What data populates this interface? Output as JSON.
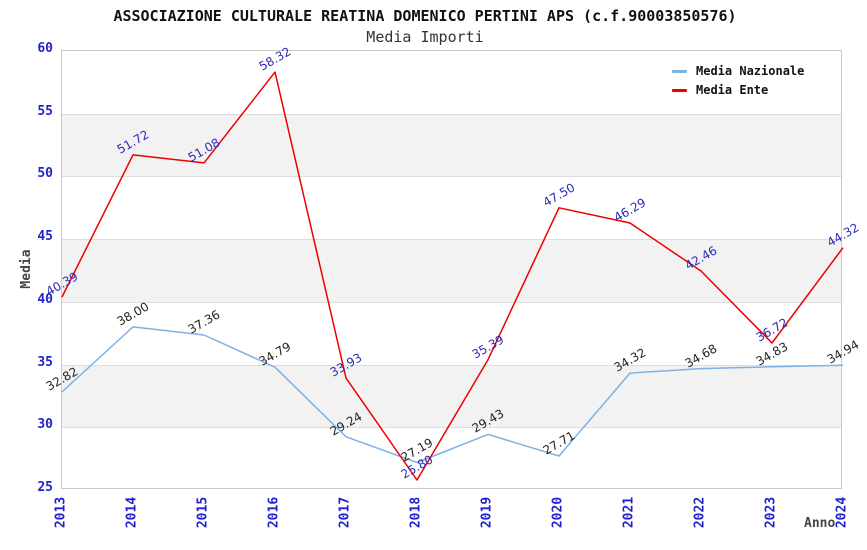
{
  "header": {
    "title": "ASSOCIAZIONE CULTURALE REATINA DOMENICO PERTINI APS (c.f.90003850576)",
    "subtitle": "Media Importi"
  },
  "axes": {
    "y_title": "Media",
    "x_title": "Anno",
    "y_ticks": [
      "25",
      "30",
      "35",
      "40",
      "45",
      "50",
      "55",
      "60"
    ],
    "x_ticks": [
      "2013",
      "2014",
      "2015",
      "2016",
      "2017",
      "2018",
      "2019",
      "2020",
      "2021",
      "2022",
      "2023",
      "2024"
    ]
  },
  "legend": {
    "position": "top-right",
    "items": [
      {
        "label": "Media Nazionale",
        "color": "#7eb2e4"
      },
      {
        "label": "Media Ente",
        "color": "#ee0000"
      }
    ]
  },
  "chart_data": {
    "type": "line",
    "title": "ASSOCIAZIONE CULTURALE REATINA DOMENICO PERTINI APS (c.f.90003850576)",
    "subtitle": "Media Importi",
    "xlabel": "Anno",
    "ylabel": "Media",
    "x": [
      "2013",
      "2014",
      "2015",
      "2016",
      "2017",
      "2018",
      "2019",
      "2020",
      "2021",
      "2022",
      "2023",
      "2024"
    ],
    "ylim": [
      25,
      60
    ],
    "y_tick_step": 5,
    "grid": "horizontal-bands-alternating",
    "legend_position": "top-right",
    "series": [
      {
        "name": "Media Nazionale",
        "color": "#7eb2e4",
        "label_color": "#222222",
        "values": [
          32.82,
          38.0,
          37.36,
          34.79,
          29.24,
          27.19,
          29.43,
          27.71,
          34.32,
          34.68,
          34.83,
          34.94
        ]
      },
      {
        "name": "Media Ente",
        "color": "#ee0000",
        "label_color": "#2a2ab8",
        "values": [
          40.39,
          51.72,
          51.08,
          58.32,
          33.93,
          25.8,
          35.39,
          47.5,
          46.29,
          42.46,
          36.72,
          44.32
        ]
      }
    ]
  },
  "colors": {
    "tick_label": "#2222cc",
    "band_gray": "#f2f2f2",
    "gridline": "#dddddd",
    "frame": "#c9c9c9",
    "title_text": "#111111",
    "axis_title_text": "#444444"
  }
}
